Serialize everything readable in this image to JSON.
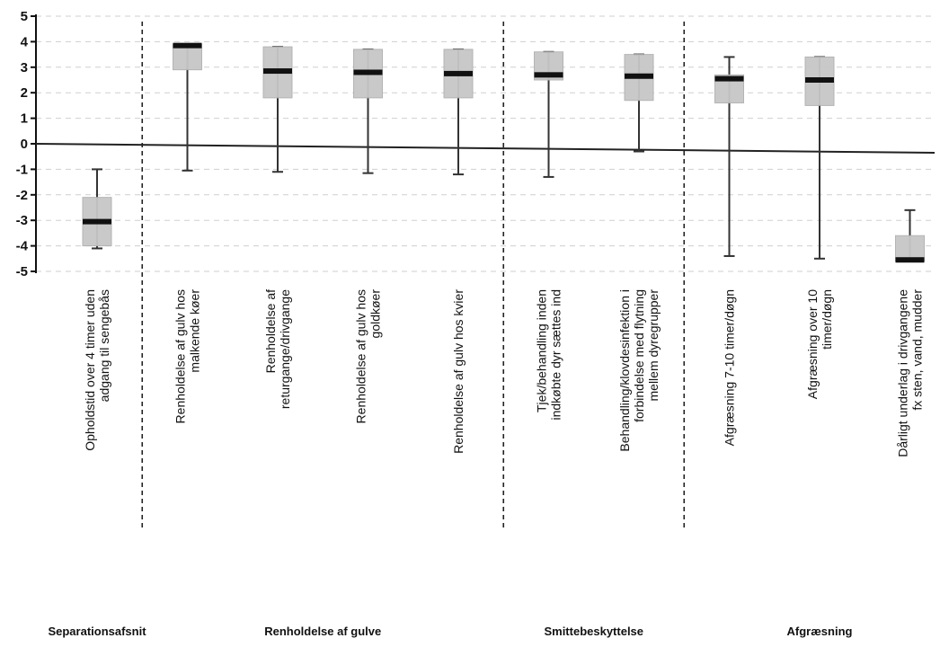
{
  "chart_data": {
    "type": "boxplot",
    "ylim": [
      -5,
      5
    ],
    "yticks": [
      "5",
      "4",
      "3",
      "2",
      "1",
      "0",
      "-1",
      "-2",
      "-3",
      "-4",
      "-5"
    ],
    "grid": true,
    "categories": [
      [
        "Opholdstid over 4 timer uden",
        "adgang til sengebås"
      ],
      [
        "Renholdelse af gulv hos",
        "malkende køer"
      ],
      [
        "Renholdelse af",
        "returgange/drivgange"
      ],
      [
        "Renholdelse af gulv hos",
        "goldkøer"
      ],
      [
        "Renholdelse af gulv hos kvier"
      ],
      [
        "Tjek/behandling inden",
        "indkøbte dyr sættes ind"
      ],
      [
        "Behandling/klovdesinfektion i",
        "forbindelse med flytning",
        "mellem dyregrupper"
      ],
      [
        "Afgræsning 7-10 timer/døgn"
      ],
      [
        "Afgræsning over 10",
        "timer/døgn"
      ],
      [
        "Dårligt underlag i drivgangene",
        "fx sten, vand, mudder"
      ]
    ],
    "boxes": [
      {
        "min": -4.1,
        "q1": -4.0,
        "median": -3.05,
        "q3": -2.1,
        "max": -1.0
      },
      {
        "min": -1.05,
        "q1": 2.9,
        "median": 3.85,
        "q3": 3.9,
        "max": 3.9
      },
      {
        "min": -1.1,
        "q1": 1.8,
        "median": 2.85,
        "q3": 3.8,
        "max": 3.8
      },
      {
        "min": -1.15,
        "q1": 1.8,
        "median": 2.8,
        "q3": 3.7,
        "max": 3.7
      },
      {
        "min": -1.2,
        "q1": 1.8,
        "median": 2.75,
        "q3": 3.7,
        "max": 3.7
      },
      {
        "min": -1.3,
        "q1": 2.5,
        "median": 2.7,
        "q3": 3.6,
        "max": 3.6
      },
      {
        "min": -0.3,
        "q1": 1.7,
        "median": 2.65,
        "q3": 3.5,
        "max": 3.5
      },
      {
        "min": -4.4,
        "q1": 1.6,
        "median": 2.55,
        "q3": 2.7,
        "max": 3.4
      },
      {
        "min": -4.5,
        "q1": 1.5,
        "median": 2.5,
        "q3": 3.4,
        "max": 3.4
      },
      {
        "min": -4.6,
        "q1": -4.6,
        "median": -4.55,
        "q3": -3.6,
        "max": -2.6
      }
    ],
    "groups": [
      "Separationsafsnit",
      "Renholdelse af gulve",
      "Smittebeskyttelse",
      "Afgræsning"
    ],
    "group_spans": [
      [
        0,
        0
      ],
      [
        1,
        4
      ],
      [
        5,
        6
      ],
      [
        7,
        9
      ]
    ],
    "zero_line_end_value": -0.35
  }
}
